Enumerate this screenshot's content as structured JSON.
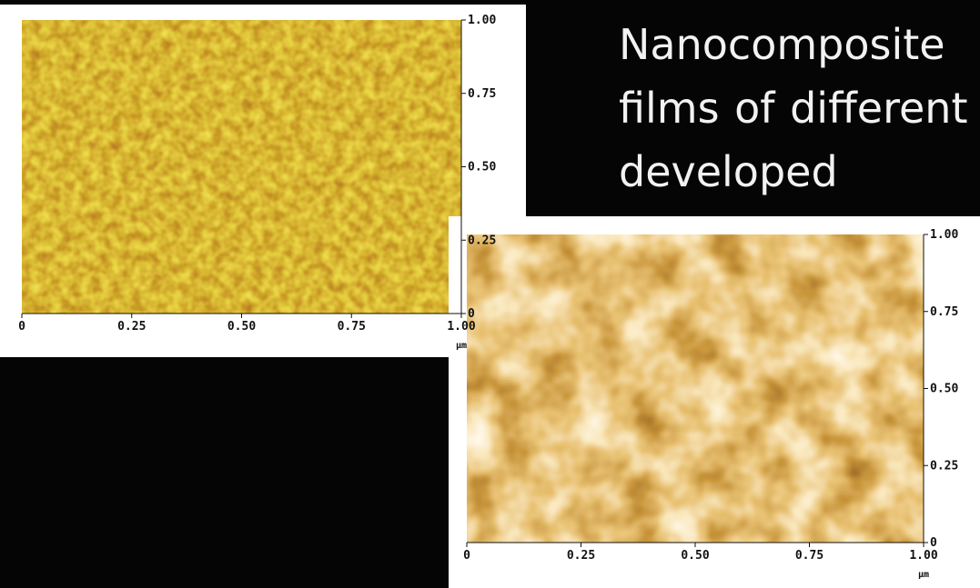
{
  "title": "Nanocomposite films of different developed",
  "panels": [
    {
      "x_ticks": [
        "0",
        "0.25",
        "0.50",
        "0.75",
        "1.00"
      ],
      "y_ticks": [
        "0",
        "0.25",
        "0.50",
        "0.75",
        "1.00"
      ],
      "unit": "μm"
    },
    {
      "x_ticks": [
        "0",
        "0.25",
        "0.50",
        "0.75",
        "1.00"
      ],
      "y_ticks": [
        "0",
        "0.25",
        "0.50",
        "0.75",
        "1.00"
      ],
      "unit": "μm"
    }
  ]
}
